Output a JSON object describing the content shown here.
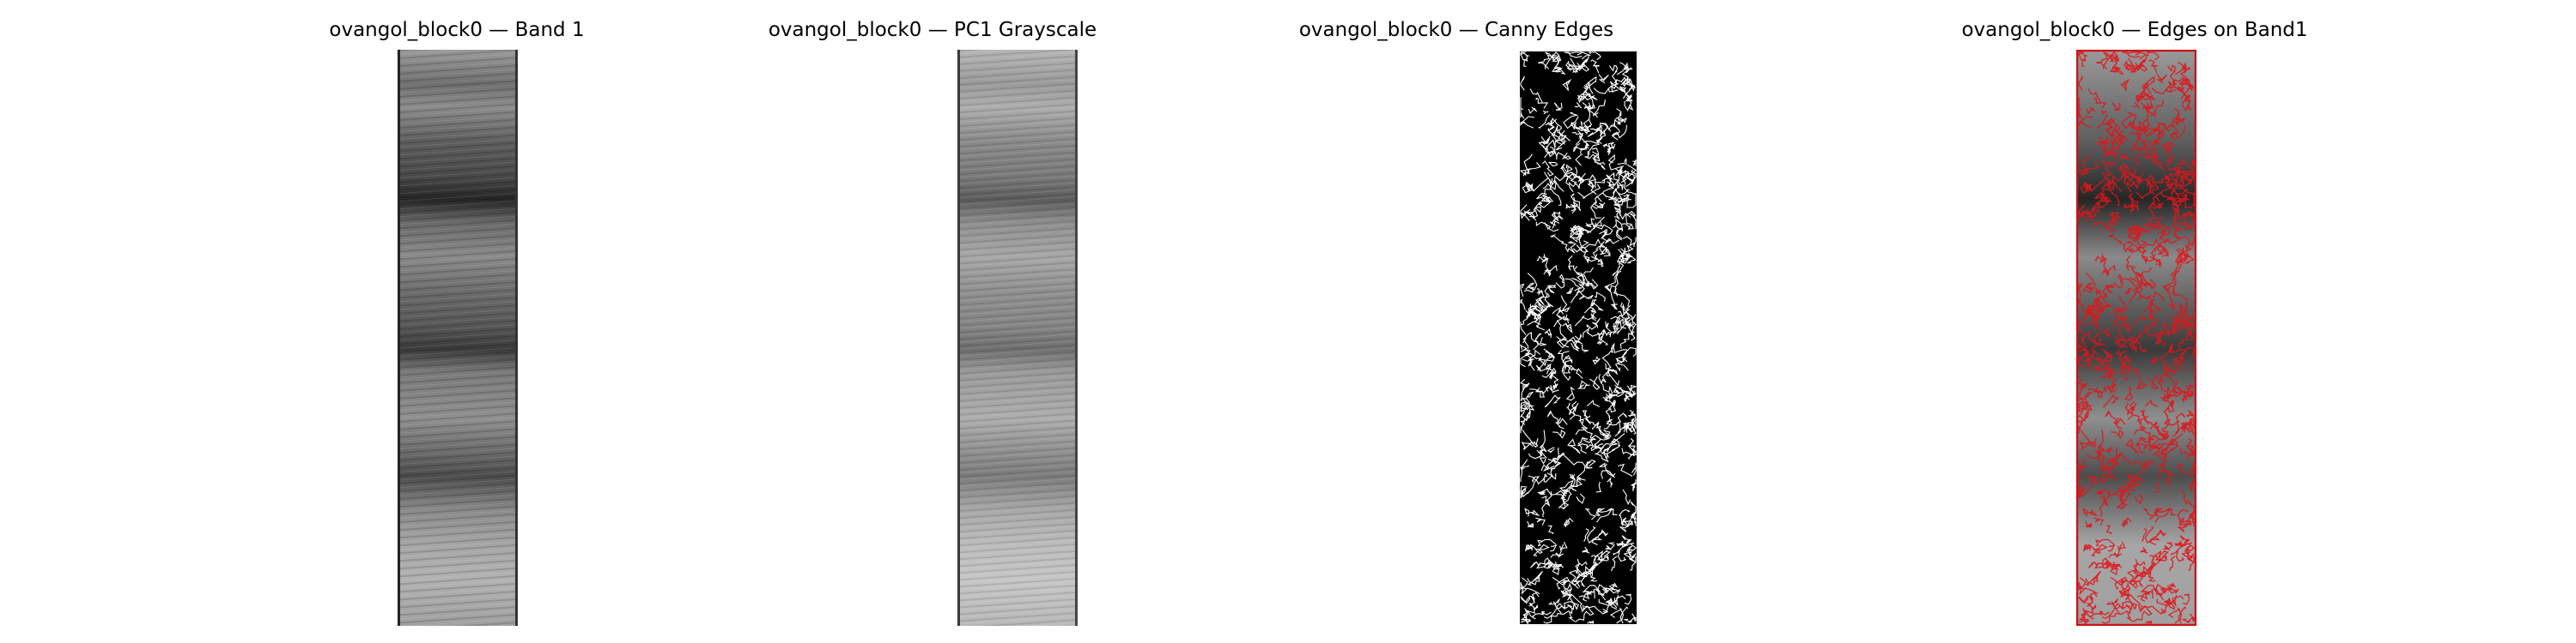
{
  "figure": {
    "panels": [
      {
        "title": "ovangol_block0 — Band 1",
        "kind": "band1"
      },
      {
        "title": "ovangol_block0 — PC1 Grayscale",
        "kind": "pc1"
      },
      {
        "title": "ovangol_block0 — Canny Edges",
        "kind": "edges"
      },
      {
        "title": "ovangol_block0 — Edges on Band1",
        "kind": "overlay"
      }
    ],
    "colors": {
      "background": "#ffffff",
      "edge_overlay": "#e0161b",
      "edge_white": "#ffffff",
      "edge_background": "#000000"
    }
  }
}
